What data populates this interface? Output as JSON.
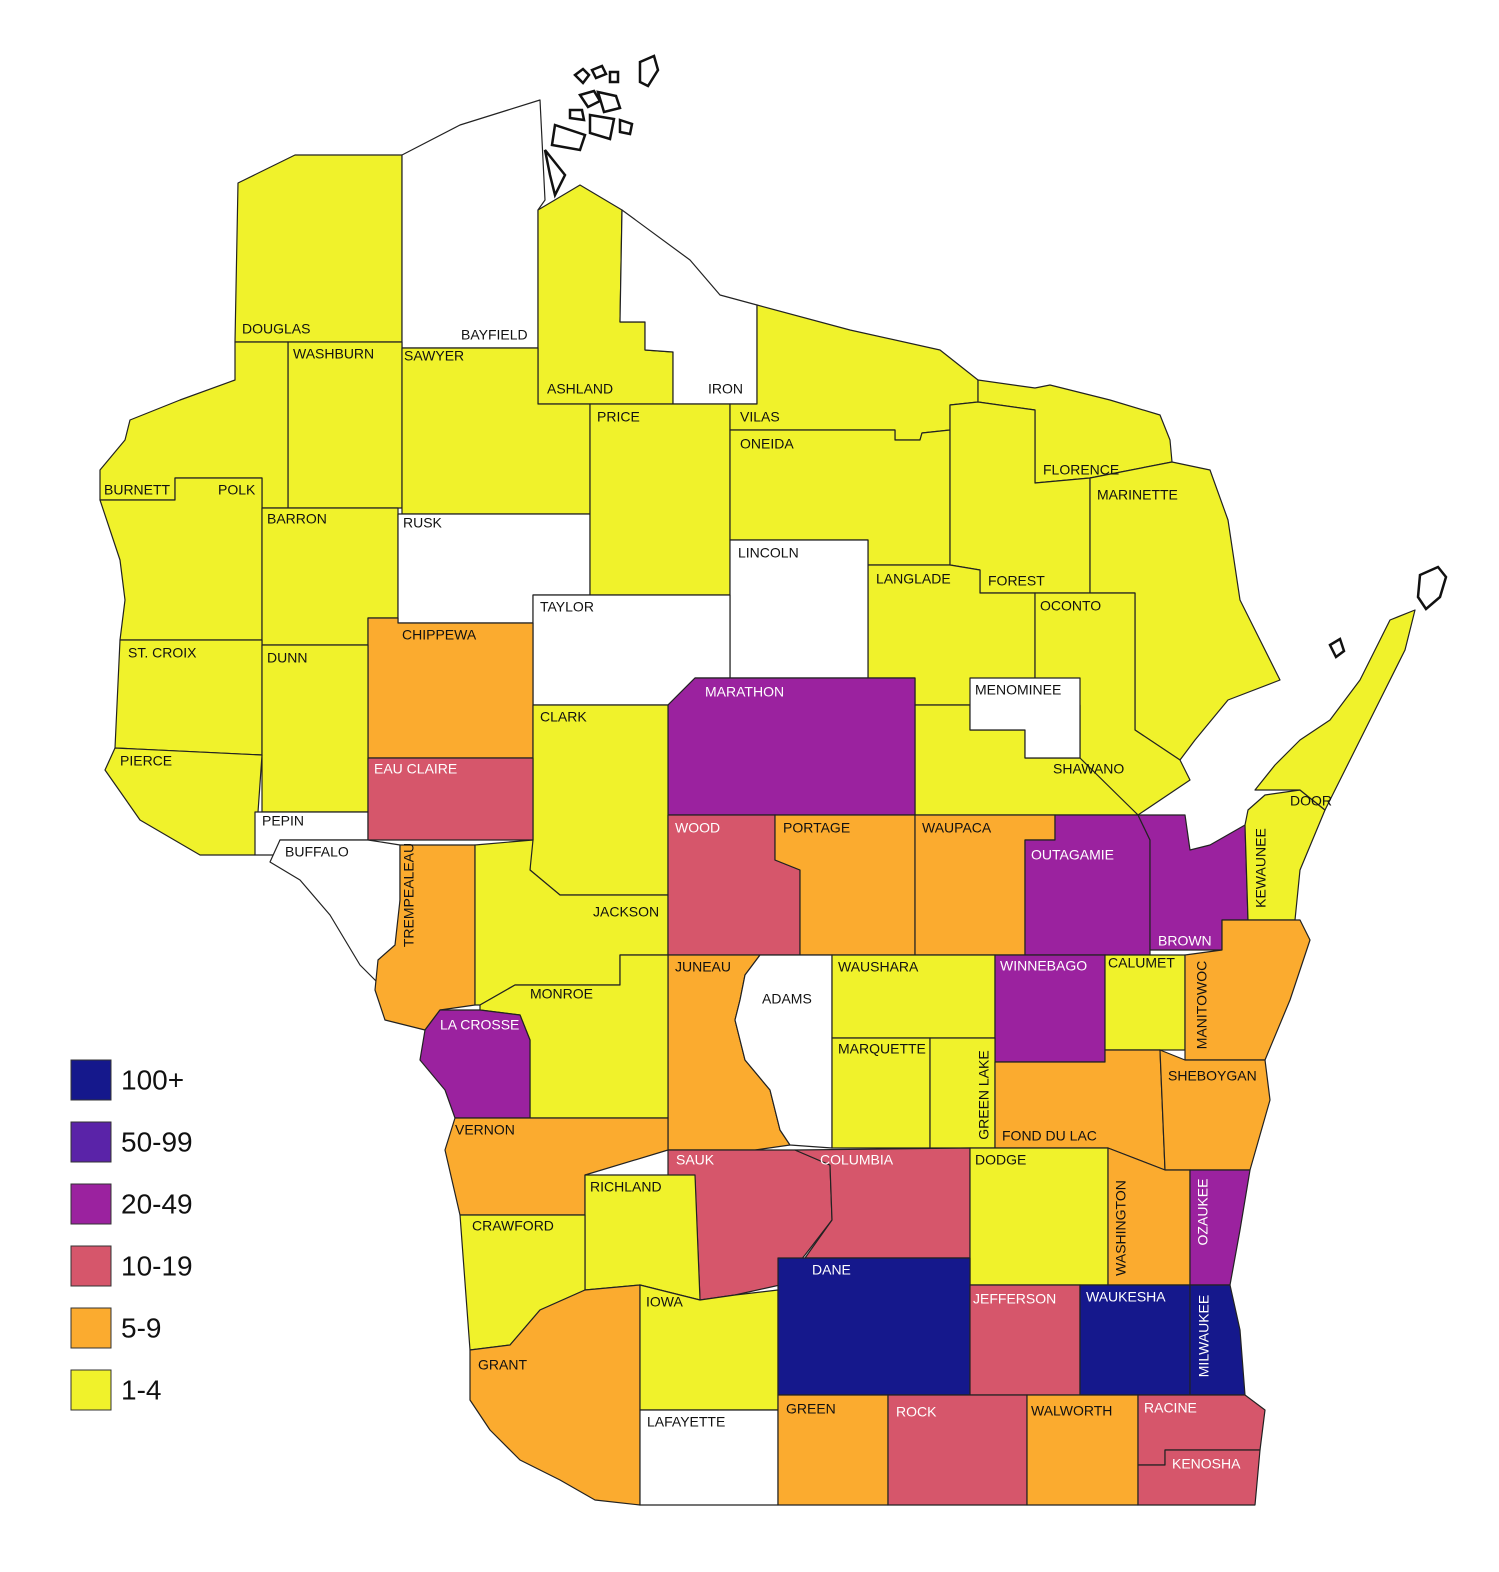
{
  "legend": {
    "items": [
      {
        "label": "100+",
        "color": "#15188c"
      },
      {
        "label": "50-99",
        "color": "#5a23a8"
      },
      {
        "label": "20-49",
        "color": "#9b229f"
      },
      {
        "label": "10-19",
        "color": "#d6566b"
      },
      {
        "label": "5-9",
        "color": "#fbab2f"
      },
      {
        "label": "1-4",
        "color": "#f0f22b"
      }
    ]
  },
  "counties": [
    {
      "name": "DOUGLAS",
      "color": "#f0f22b"
    },
    {
      "name": "BAYFIELD",
      "color": "#ffffff"
    },
    {
      "name": "ASHLAND",
      "color": "#f0f22b"
    },
    {
      "name": "IRON",
      "color": "#ffffff"
    },
    {
      "name": "WASHBURN",
      "color": "#f0f22b"
    },
    {
      "name": "SAWYER",
      "color": "#f0f22b"
    },
    {
      "name": "BURNETT",
      "color": "#f0f22b"
    },
    {
      "name": "POLK",
      "color": "#f0f22b"
    },
    {
      "name": "BARRON",
      "color": "#f0f22b"
    },
    {
      "name": "RUSK",
      "color": "#ffffff"
    },
    {
      "name": "PRICE",
      "color": "#f0f22b"
    },
    {
      "name": "VILAS",
      "color": "#f0f22b"
    },
    {
      "name": "ONEIDA",
      "color": "#f0f22b"
    },
    {
      "name": "FLORENCE",
      "color": "#f0f22b"
    },
    {
      "name": "FOREST",
      "color": "#f0f22b"
    },
    {
      "name": "MARINETTE",
      "color": "#f0f22b"
    },
    {
      "name": "LANGLADE",
      "color": "#f0f22b"
    },
    {
      "name": "LINCOLN",
      "color": "#ffffff"
    },
    {
      "name": "TAYLOR",
      "color": "#ffffff"
    },
    {
      "name": "CHIPPEWA",
      "color": "#fbab2f"
    },
    {
      "name": "OCONTO",
      "color": "#f0f22b"
    },
    {
      "name": "SHAWANO",
      "color": "#f0f22b"
    },
    {
      "name": "MENOMINEE",
      "color": "#ffffff"
    },
    {
      "name": "MARATHON",
      "color": "#9b229f"
    },
    {
      "name": "CLARK",
      "color": "#f0f22b"
    },
    {
      "name": "ST. CROIX",
      "color": "#f0f22b"
    },
    {
      "name": "DUNN",
      "color": "#f0f22b"
    },
    {
      "name": "PIERCE",
      "color": "#f0f22b"
    },
    {
      "name": "PEPIN",
      "color": "#ffffff"
    },
    {
      "name": "EAU CLAIRE",
      "color": "#d6566b"
    },
    {
      "name": "BUFFALO",
      "color": "#ffffff"
    },
    {
      "name": "TREMPEALEAU",
      "color": "#fbab2f"
    },
    {
      "name": "JACKSON",
      "color": "#f0f22b"
    },
    {
      "name": "WOOD",
      "color": "#d6566b"
    },
    {
      "name": "PORTAGE",
      "color": "#fbab2f"
    },
    {
      "name": "WAUPACA",
      "color": "#fbab2f"
    },
    {
      "name": "OUTAGAMIE",
      "color": "#9b229f"
    },
    {
      "name": "BROWN",
      "color": "#9b229f"
    },
    {
      "name": "KEWAUNEE",
      "color": "#f0f22b"
    },
    {
      "name": "DOOR",
      "color": "#f0f22b"
    },
    {
      "name": "JUNEAU",
      "color": "#fbab2f"
    },
    {
      "name": "ADAMS",
      "color": "#ffffff"
    },
    {
      "name": "WAUSHARA",
      "color": "#f0f22b"
    },
    {
      "name": "WINNEBAGO",
      "color": "#9b229f"
    },
    {
      "name": "CALUMET",
      "color": "#f0f22b"
    },
    {
      "name": "MANITOWOC",
      "color": "#fbab2f"
    },
    {
      "name": "MONROE",
      "color": "#f0f22b"
    },
    {
      "name": "LA CROSSE",
      "color": "#9b229f"
    },
    {
      "name": "MARQUETTE",
      "color": "#f0f22b"
    },
    {
      "name": "GREEN LAKE",
      "color": "#f0f22b"
    },
    {
      "name": "FOND DU LAC",
      "color": "#fbab2f"
    },
    {
      "name": "SHEBOYGAN",
      "color": "#fbab2f"
    },
    {
      "name": "VERNON",
      "color": "#fbab2f"
    },
    {
      "name": "SAUK",
      "color": "#d6566b"
    },
    {
      "name": "COLUMBIA",
      "color": "#d6566b"
    },
    {
      "name": "DODGE",
      "color": "#f0f22b"
    },
    {
      "name": "WASHINGTON",
      "color": "#fbab2f"
    },
    {
      "name": "OZAUKEE",
      "color": "#9b229f"
    },
    {
      "name": "RICHLAND",
      "color": "#f0f22b"
    },
    {
      "name": "CRAWFORD",
      "color": "#f0f22b"
    },
    {
      "name": "GRANT",
      "color": "#fbab2f"
    },
    {
      "name": "IOWA",
      "color": "#f0f22b"
    },
    {
      "name": "DANE",
      "color": "#15188c"
    },
    {
      "name": "JEFFERSON",
      "color": "#d6566b"
    },
    {
      "name": "WAUKESHA",
      "color": "#15188c"
    },
    {
      "name": "MILWAUKEE",
      "color": "#15188c"
    },
    {
      "name": "LAFAYETTE",
      "color": "#ffffff"
    },
    {
      "name": "GREEN",
      "color": "#fbab2f"
    },
    {
      "name": "ROCK",
      "color": "#d6566b"
    },
    {
      "name": "WALWORTH",
      "color": "#fbab2f"
    },
    {
      "name": "RACINE",
      "color": "#d6566b"
    },
    {
      "name": "KENOSHA",
      "color": "#d6566b"
    }
  ]
}
